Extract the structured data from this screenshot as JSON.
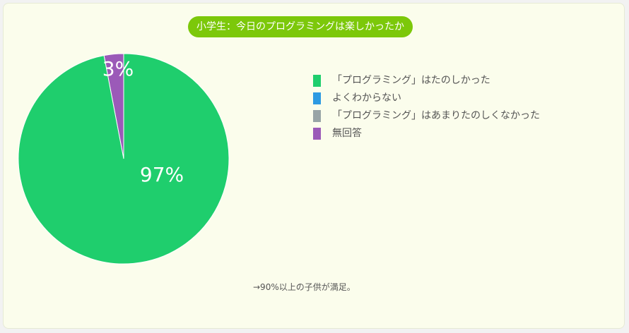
{
  "chart_data": {
    "type": "pie",
    "title": "小学生：今日のプログラミングは楽しかったか",
    "series": [
      {
        "name": "「プログラミング」はたのしかった",
        "value": 97,
        "color": "#1fce6d"
      },
      {
        "name": "よくわからない",
        "value": 0,
        "color": "#2d9ae2"
      },
      {
        "name": "「プログラミング」はあまりたのしくなかった",
        "value": 0,
        "color": "#98a4a6"
      },
      {
        "name": "無回答",
        "value": 3,
        "color": "#9b5ab8"
      }
    ],
    "data_labels": [
      "97%",
      "3%"
    ],
    "legend_position": "right"
  },
  "note": "→90%以上の子供が満足。"
}
